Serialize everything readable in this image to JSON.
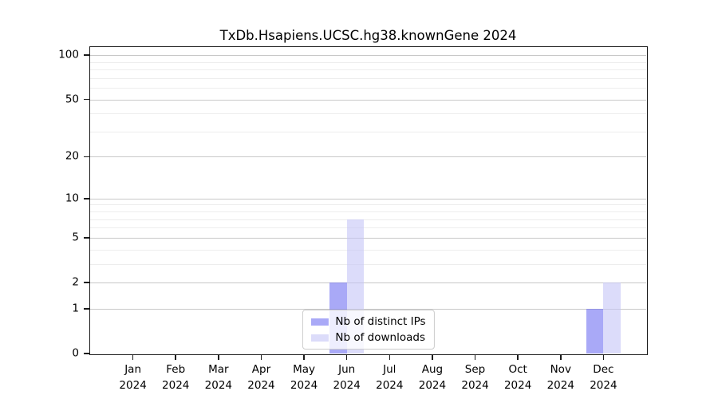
{
  "chart_data": {
    "type": "bar",
    "title": "TxDb.Hsapiens.UCSC.hg38.knownGene 2024",
    "categories": [
      {
        "month": "Jan",
        "year": "2024"
      },
      {
        "month": "Feb",
        "year": "2024"
      },
      {
        "month": "Mar",
        "year": "2024"
      },
      {
        "month": "Apr",
        "year": "2024"
      },
      {
        "month": "May",
        "year": "2024"
      },
      {
        "month": "Jun",
        "year": "2024"
      },
      {
        "month": "Jul",
        "year": "2024"
      },
      {
        "month": "Aug",
        "year": "2024"
      },
      {
        "month": "Sep",
        "year": "2024"
      },
      {
        "month": "Oct",
        "year": "2024"
      },
      {
        "month": "Nov",
        "year": "2024"
      },
      {
        "month": "Dec",
        "year": "2024"
      }
    ],
    "series": [
      {
        "name": "Nb of distinct IPs",
        "color": "rgba(112,112,242,0.6)",
        "legend_color": "#a9a9f7",
        "values": [
          0,
          0,
          0,
          0,
          0,
          2,
          0,
          0,
          0,
          0,
          0,
          1
        ]
      },
      {
        "name": "Nb of downloads",
        "color": "rgba(197,197,247,0.6)",
        "legend_color": "#dcdcfa",
        "values": [
          0,
          0,
          0,
          0,
          0,
          7,
          0,
          0,
          0,
          0,
          0,
          2
        ]
      }
    ],
    "yscale": "log1p",
    "ylim": [
      0,
      113.5
    ],
    "y_ticks": [
      0,
      1,
      2,
      5,
      10,
      20,
      50,
      100
    ],
    "minor_gridlines": [
      3,
      4,
      6,
      7,
      8,
      9,
      30,
      40,
      60,
      70,
      80,
      90
    ],
    "grid": "horizontal-only",
    "legend_position": "inside-bottom-center",
    "colors": {
      "major_grid": "#c8c8c8",
      "minor_grid": "#ededed",
      "axis": "#1a1a1a",
      "text": "#000000",
      "legend_border": "#cccccc",
      "legend_bg": "rgba(255,255,255,0.8)"
    }
  }
}
